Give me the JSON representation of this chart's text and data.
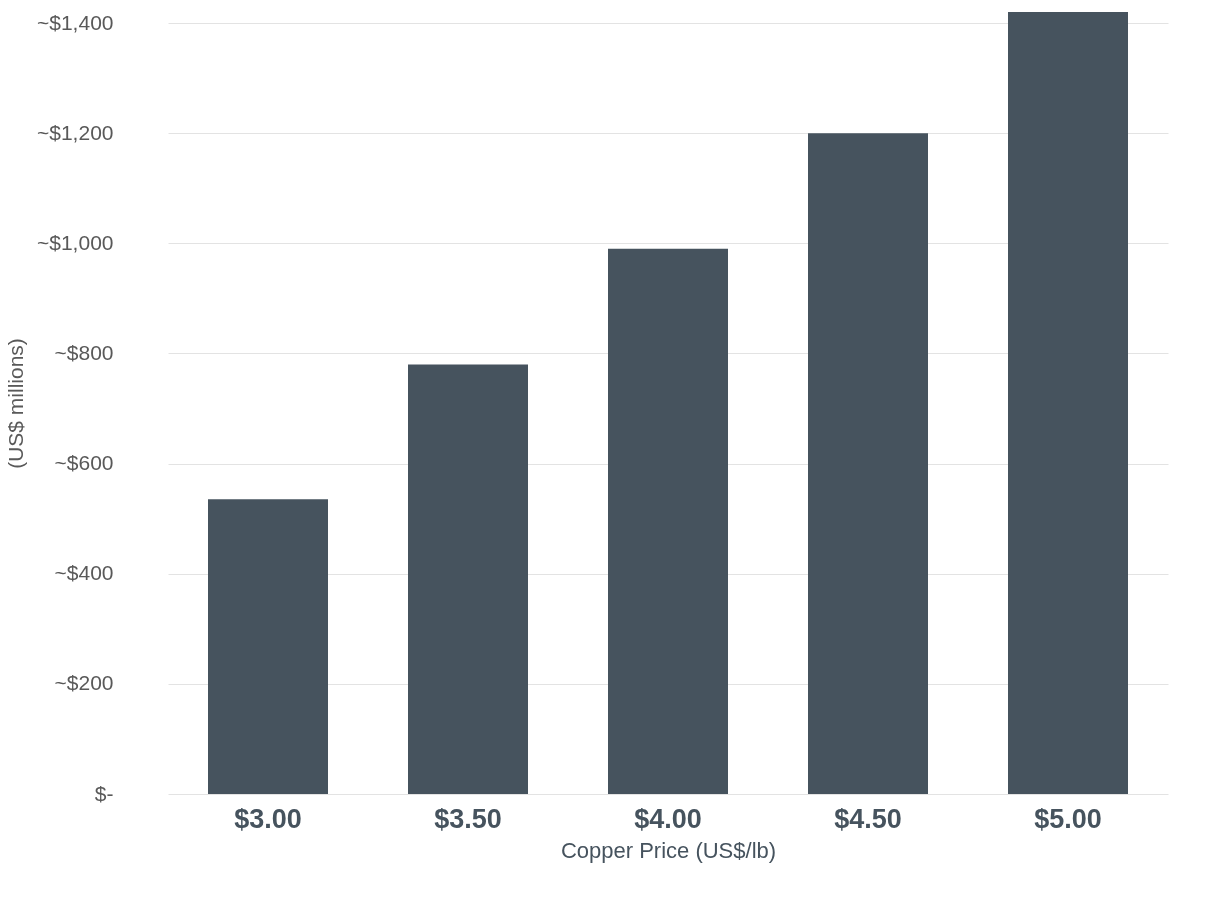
{
  "chart_data": {
    "type": "bar",
    "xlabel": "Copper Price (US$/lb)",
    "ylabel": "(US$ millions)",
    "categories": [
      "$3.00",
      "$3.50",
      "$4.00",
      "$4.50",
      "$5.00"
    ],
    "values": [
      535,
      780,
      990,
      1200,
      1420
    ],
    "color": "#46535e",
    "ylim": [
      0,
      1420
    ],
    "yticks": [
      {
        "value": 0,
        "label": "$-"
      },
      {
        "value": 200,
        "label": "~$200"
      },
      {
        "value": 400,
        "label": "~$400"
      },
      {
        "value": 600,
        "label": "~$600"
      },
      {
        "value": 800,
        "label": "~$800"
      },
      {
        "value": 1000,
        "label": "~$1,000"
      },
      {
        "value": 1200,
        "label": "~$1,200"
      },
      {
        "value": 1400,
        "label": "~$1,400"
      }
    ],
    "grid": "y"
  }
}
